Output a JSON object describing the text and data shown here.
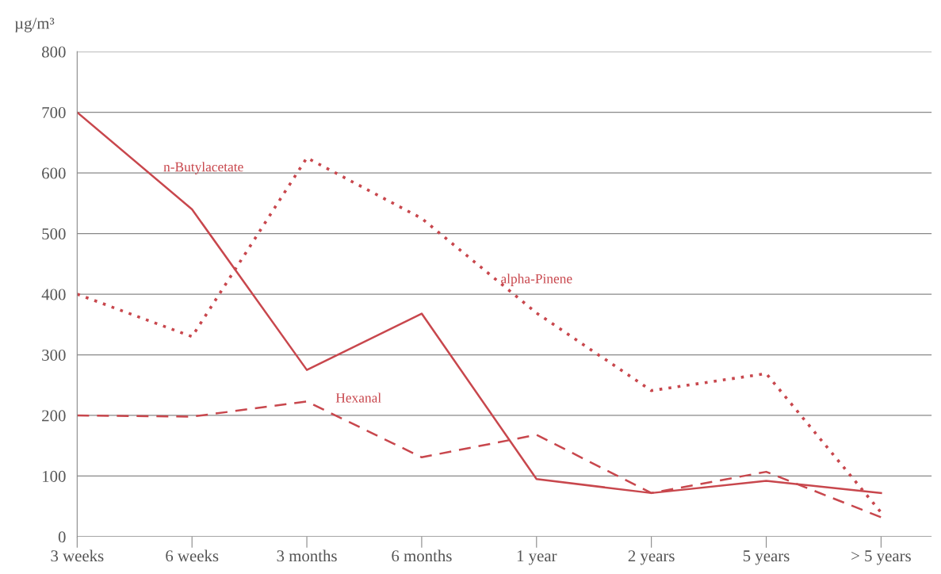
{
  "chart_data": {
    "type": "line",
    "ylabel": "µg/m³",
    "categories": [
      "3 weeks",
      "6 weeks",
      "3 months",
      "6 months",
      "1 year",
      "2 years",
      "5 years",
      "> 5 years"
    ],
    "series": [
      {
        "name": "n-Butylacetate",
        "color": "#c8474d",
        "line_style": "solid",
        "values": [
          700,
          540,
          275,
          368,
          95,
          72,
          92,
          72
        ]
      },
      {
        "name": "alpha-Pinene",
        "color": "#c8474d",
        "line_style": "dotted",
        "values": [
          400,
          330,
          625,
          525,
          369,
          241,
          269,
          40
        ]
      },
      {
        "name": "Hexanal",
        "color": "#c8474d",
        "line_style": "dashed",
        "values": [
          200,
          198,
          223,
          131,
          168,
          72,
          107,
          32
        ]
      }
    ],
    "ylim": [
      0,
      800
    ],
    "yticks": [
      0,
      100,
      200,
      300,
      400,
      500,
      600,
      700,
      800
    ],
    "grid": "y",
    "legend": false,
    "marker": "none"
  }
}
